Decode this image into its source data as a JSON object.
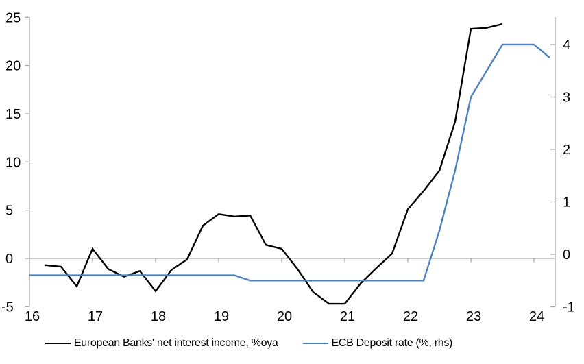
{
  "chart_data": {
    "type": "line",
    "title": "",
    "x_axis": {
      "ticks": [
        16,
        17,
        18,
        19,
        20,
        21,
        22,
        23,
        24
      ],
      "range": [
        16,
        24.34
      ],
      "unit": "year"
    },
    "left_y_axis": {
      "ticks": [
        -5,
        0,
        5,
        10,
        15,
        20,
        25
      ],
      "range": [
        -5,
        25
      ]
    },
    "right_y_axis": {
      "ticks": [
        -1,
        0,
        1,
        2,
        3,
        4
      ],
      "range": [
        -1,
        4.5
      ]
    },
    "grid": "zero-line-only",
    "legend_position": "bottom-center",
    "series": [
      {
        "name": "European Banks' net interest income, %oya",
        "axis": "left",
        "color": "#000000",
        "x": [
          16.25,
          16.5,
          16.75,
          17.0,
          17.25,
          17.5,
          17.75,
          18.0,
          18.25,
          18.5,
          18.75,
          19.0,
          19.25,
          19.5,
          19.75,
          20.0,
          20.25,
          20.5,
          20.75,
          21.0,
          21.25,
          21.5,
          21.75,
          22.0,
          22.25,
          22.5,
          22.75,
          23.0,
          23.25,
          23.5
        ],
        "values": [
          -0.7,
          -0.85,
          -2.9,
          1.0,
          -1.1,
          -1.9,
          -1.3,
          -3.4,
          -1.2,
          -0.1,
          3.4,
          4.6,
          4.35,
          4.45,
          1.4,
          1.0,
          -1.1,
          -3.5,
          -4.7,
          -4.7,
          -2.6,
          -1.0,
          0.5,
          5.1,
          7.0,
          9.1,
          14.2,
          23.8,
          23.9,
          24.3
        ]
      },
      {
        "name": "ECB Deposit rate (%, rhs)",
        "axis": "right",
        "color": "#4f81bd",
        "x": [
          16.0,
          16.25,
          16.5,
          16.75,
          17.0,
          17.25,
          17.5,
          17.75,
          18.0,
          18.25,
          18.5,
          18.75,
          19.0,
          19.25,
          19.5,
          19.75,
          20.0,
          20.25,
          20.5,
          20.75,
          21.0,
          21.25,
          21.5,
          21.75,
          22.0,
          22.25,
          22.5,
          22.75,
          23.0,
          23.25,
          23.5,
          23.75,
          24.0,
          24.25
        ],
        "values": [
          -0.4,
          -0.4,
          -0.4,
          -0.4,
          -0.4,
          -0.4,
          -0.4,
          -0.4,
          -0.4,
          -0.4,
          -0.4,
          -0.4,
          -0.4,
          -0.4,
          -0.5,
          -0.5,
          -0.5,
          -0.5,
          -0.5,
          -0.5,
          -0.5,
          -0.5,
          -0.5,
          -0.5,
          -0.5,
          -0.5,
          0.45,
          1.6,
          3.0,
          3.5,
          4.0,
          4.0,
          4.0,
          3.75
        ]
      }
    ]
  },
  "legend": {
    "items": [
      {
        "label": "European Banks' net interest income, %oya",
        "color": "#000000"
      },
      {
        "label": "ECB Deposit rate (%, rhs)",
        "color": "#4f81bd"
      }
    ]
  },
  "colors": {
    "axis_line": "#a6a6a6",
    "zero_line": "#ababab",
    "tick_text": "#000000",
    "background": "#ffffff"
  }
}
